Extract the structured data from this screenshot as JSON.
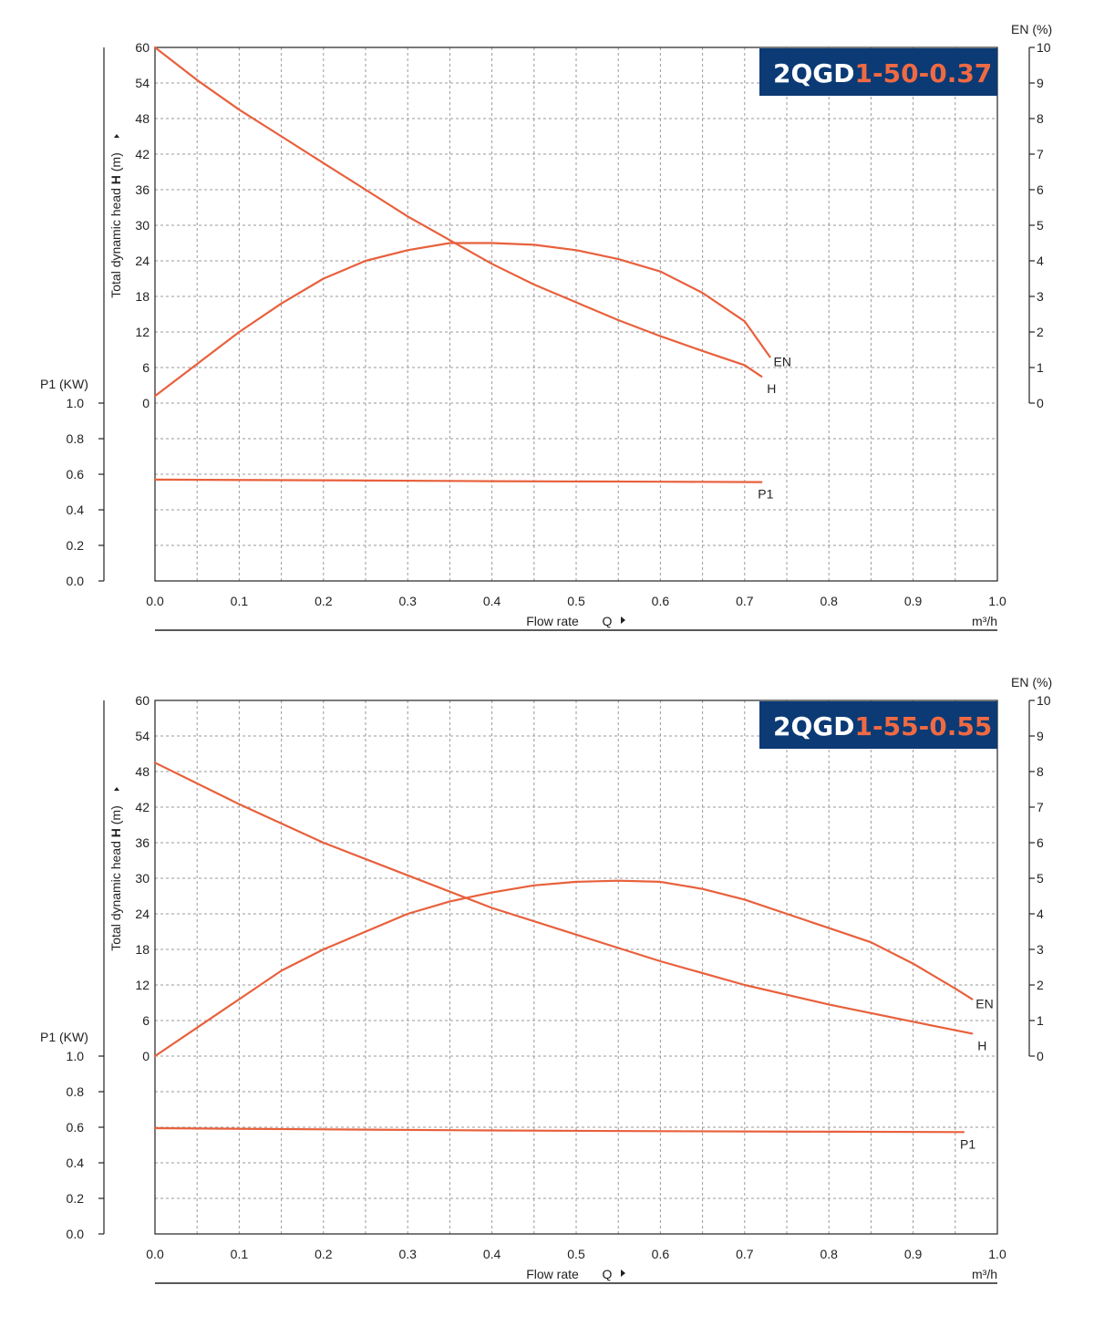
{
  "chart_data": [
    {
      "type": "line",
      "title": "",
      "model": {
        "prefix": "2QGD",
        "suffix": "1-50-0.37",
        "box_color": "#0b3a75",
        "prefix_color": "#ffffff",
        "suffix_color": "#ef6a43"
      },
      "x": {
        "label": "Flow rate",
        "symbol": "Q",
        "unit": "m³/h",
        "range": [
          0,
          1.0
        ],
        "ticks": [
          "0.0",
          "0.1",
          "0.2",
          "0.3",
          "0.4",
          "0.5",
          "0.6",
          "0.7",
          "0.8",
          "0.9",
          "1.0"
        ]
      },
      "y_head": {
        "label_plain": "Total dynamic head ",
        "label_bold": "H",
        "label_unit": " (m)",
        "range": [
          0,
          60
        ],
        "ticks": [
          "0",
          "6",
          "12",
          "18",
          "24",
          "30",
          "36",
          "42",
          "48",
          "54",
          "60"
        ]
      },
      "y_power": {
        "label": "P1 (KW)",
        "range": [
          0,
          1.0
        ],
        "ticks": [
          "0.0",
          "0.2",
          "0.4",
          "0.6",
          "0.8",
          "1.0"
        ]
      },
      "y_eff": {
        "label": "EN (%)",
        "range": [
          0,
          10
        ],
        "ticks": [
          "0",
          "1",
          "2",
          "3",
          "4",
          "5",
          "6",
          "7",
          "8",
          "9",
          "10"
        ]
      },
      "curve_color": "#e8603c",
      "series": [
        {
          "name": "H",
          "axis": "head",
          "points": [
            [
              0,
              60
            ],
            [
              0.05,
              54.5
            ],
            [
              0.1,
              49.5
            ],
            [
              0.15,
              45
            ],
            [
              0.2,
              40.5
            ],
            [
              0.25,
              36
            ],
            [
              0.3,
              31.5
            ],
            [
              0.35,
              27.5
            ],
            [
              0.4,
              23.5
            ],
            [
              0.45,
              20
            ],
            [
              0.5,
              17
            ],
            [
              0.55,
              14
            ],
            [
              0.6,
              11.3
            ],
            [
              0.65,
              8.8
            ],
            [
              0.7,
              6.4
            ],
            [
              0.72,
              4.5
            ]
          ]
        },
        {
          "name": "EN",
          "axis": "eff",
          "points": [
            [
              0,
              0.2
            ],
            [
              0.05,
              1.1
            ],
            [
              0.1,
              2.0
            ],
            [
              0.15,
              2.8
            ],
            [
              0.2,
              3.5
            ],
            [
              0.25,
              4.0
            ],
            [
              0.3,
              4.3
            ],
            [
              0.35,
              4.5
            ],
            [
              0.4,
              4.5
            ],
            [
              0.45,
              4.45
            ],
            [
              0.5,
              4.3
            ],
            [
              0.55,
              4.05
            ],
            [
              0.6,
              3.7
            ],
            [
              0.65,
              3.1
            ],
            [
              0.7,
              2.3
            ],
            [
              0.73,
              1.3
            ]
          ]
        },
        {
          "name": "P1",
          "axis": "power",
          "points": [
            [
              0,
              0.57
            ],
            [
              0.2,
              0.566
            ],
            [
              0.4,
              0.561
            ],
            [
              0.6,
              0.558
            ],
            [
              0.72,
              0.556
            ]
          ]
        }
      ]
    },
    {
      "type": "line",
      "title": "",
      "model": {
        "prefix": "2QGD",
        "suffix": "1-55-0.55",
        "box_color": "#0b3a75",
        "prefix_color": "#ffffff",
        "suffix_color": "#ef6a43"
      },
      "x": {
        "label": "Flow rate",
        "symbol": "Q",
        "unit": "m³/h",
        "range": [
          0,
          1.0
        ],
        "ticks": [
          "0.0",
          "0.1",
          "0.2",
          "0.3",
          "0.4",
          "0.5",
          "0.6",
          "0.7",
          "0.8",
          "0.9",
          "1.0"
        ]
      },
      "y_head": {
        "label_plain": "Total dynamic head ",
        "label_bold": "H",
        "label_unit": " (m)",
        "range": [
          0,
          60
        ],
        "ticks": [
          "0",
          "6",
          "12",
          "18",
          "24",
          "30",
          "36",
          "42",
          "48",
          "54",
          "60"
        ]
      },
      "y_power": {
        "label": "P1 (KW)",
        "range": [
          0,
          1.0
        ],
        "ticks": [
          "0.0",
          "0.2",
          "0.4",
          "0.6",
          "0.8",
          "1.0"
        ]
      },
      "y_eff": {
        "label": "EN (%)",
        "range": [
          0,
          10
        ],
        "ticks": [
          "0",
          "1",
          "2",
          "3",
          "4",
          "5",
          "6",
          "7",
          "8",
          "9",
          "10"
        ]
      },
      "curve_color": "#e8603c",
      "series": [
        {
          "name": "H",
          "axis": "head",
          "points": [
            [
              0,
              49.5
            ],
            [
              0.1,
              42.5
            ],
            [
              0.2,
              36
            ],
            [
              0.3,
              30.5
            ],
            [
              0.4,
              25
            ],
            [
              0.5,
              20.5
            ],
            [
              0.6,
              16
            ],
            [
              0.7,
              12
            ],
            [
              0.8,
              8.7
            ],
            [
              0.9,
              5.8
            ],
            [
              0.97,
              3.8
            ]
          ]
        },
        {
          "name": "EN",
          "axis": "eff",
          "points": [
            [
              0,
              0
            ],
            [
              0.05,
              0.8
            ],
            [
              0.1,
              1.6
            ],
            [
              0.15,
              2.4
            ],
            [
              0.2,
              3.0
            ],
            [
              0.25,
              3.5
            ],
            [
              0.3,
              4.0
            ],
            [
              0.35,
              4.35
            ],
            [
              0.4,
              4.6
            ],
            [
              0.45,
              4.8
            ],
            [
              0.5,
              4.9
            ],
            [
              0.55,
              4.93
            ],
            [
              0.6,
              4.9
            ],
            [
              0.65,
              4.7
            ],
            [
              0.7,
              4.4
            ],
            [
              0.75,
              4.0
            ],
            [
              0.8,
              3.6
            ],
            [
              0.85,
              3.2
            ],
            [
              0.9,
              2.6
            ],
            [
              0.95,
              1.9
            ],
            [
              0.97,
              1.6
            ]
          ]
        },
        {
          "name": "P1",
          "axis": "power",
          "points": [
            [
              0,
              0.595
            ],
            [
              0.2,
              0.588
            ],
            [
              0.4,
              0.582
            ],
            [
              0.6,
              0.578
            ],
            [
              0.8,
              0.575
            ],
            [
              0.96,
              0.573
            ]
          ]
        }
      ]
    }
  ]
}
